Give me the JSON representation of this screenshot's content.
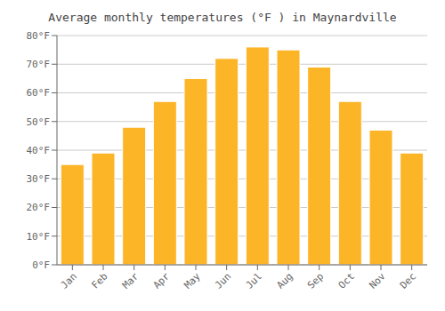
{
  "chart_data": {
    "type": "bar",
    "title": "Average monthly temperatures (°F ) in Maynardville",
    "categories": [
      "Jan",
      "Feb",
      "Mar",
      "Apr",
      "May",
      "Jun",
      "Jul",
      "Aug",
      "Sep",
      "Oct",
      "Nov",
      "Dec"
    ],
    "values": [
      35,
      39,
      48,
      57,
      65,
      72,
      76,
      75,
      69,
      57,
      47,
      39
    ],
    "color": "#FDB528",
    "ylim": [
      0,
      80
    ],
    "yticks": [
      {
        "value": 0,
        "label": "0°F"
      },
      {
        "value": 10,
        "label": "10°F"
      },
      {
        "value": 20,
        "label": "20°F"
      },
      {
        "value": 30,
        "label": "30°F"
      },
      {
        "value": 40,
        "label": "40°F"
      },
      {
        "value": 50,
        "label": "50°F"
      },
      {
        "value": 60,
        "label": "60°F"
      },
      {
        "value": 70,
        "label": "70°F"
      },
      {
        "value": 80,
        "label": "80°F"
      }
    ],
    "grid": true
  }
}
